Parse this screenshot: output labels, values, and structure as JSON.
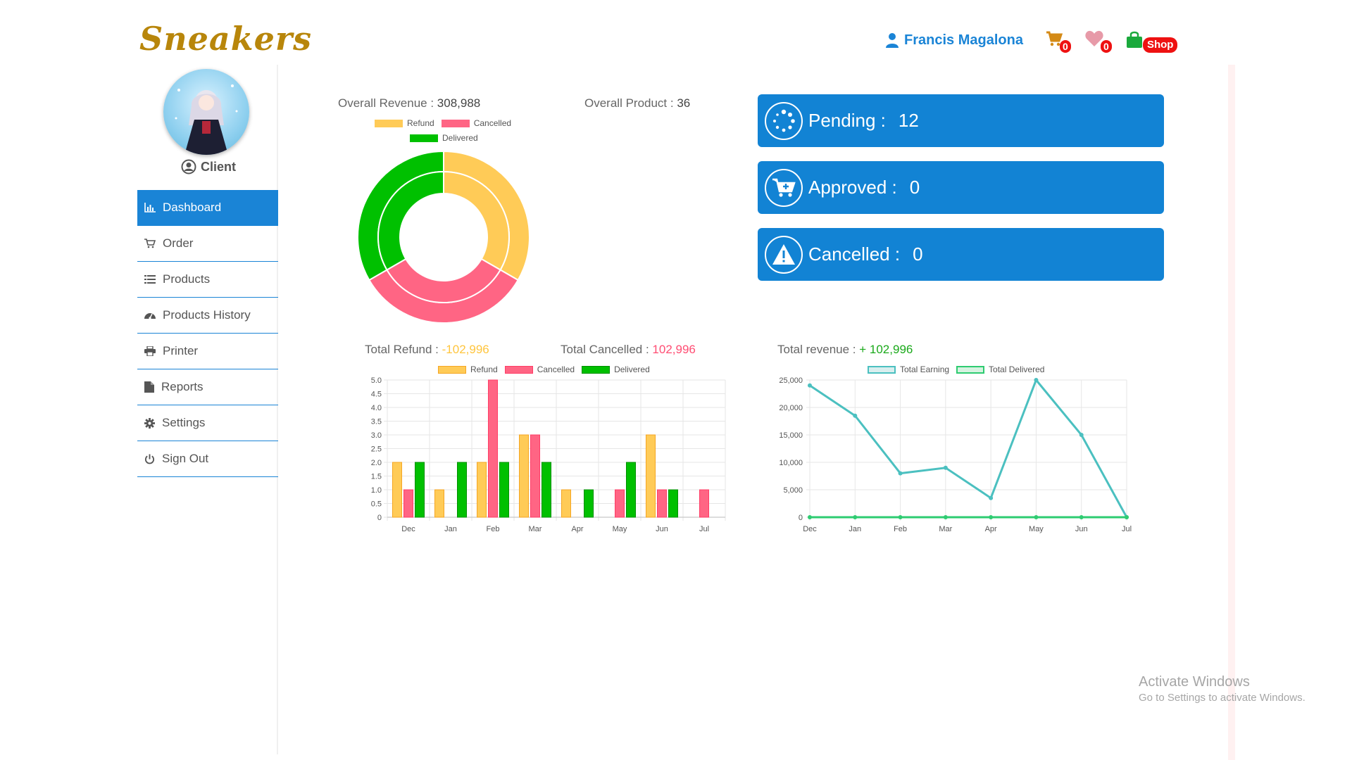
{
  "header": {
    "logo": "Sneakers",
    "user_name": "Francis Magalona",
    "cart_count": "0",
    "wishlist_count": "0",
    "shop_label": "Shop"
  },
  "sidebar": {
    "role": "Client",
    "items": [
      {
        "label": "Dashboard",
        "icon": "bar-chart-icon"
      },
      {
        "label": "Order",
        "icon": "cart-icon"
      },
      {
        "label": "Products",
        "icon": "list-icon"
      },
      {
        "label": "Products History",
        "icon": "dashboard-gauge-icon"
      },
      {
        "label": "Printer",
        "icon": "printer-icon"
      },
      {
        "label": "Reports",
        "icon": "file-icon"
      },
      {
        "label": "Settings",
        "icon": "gear-icon"
      },
      {
        "label": "Sign Out",
        "icon": "power-icon"
      }
    ]
  },
  "stats": {
    "overall_revenue_label": "Overall Revenue : ",
    "overall_revenue_value": "308,988",
    "overall_product_label": "Overall Product : ",
    "overall_product_value": "36",
    "total_refund_label": "Total Refund : ",
    "total_refund_value": "-102,996",
    "total_cancelled_label": "Total Cancelled : ",
    "total_cancelled_value": "102,996",
    "total_revenue_label": "Total revenue : ",
    "total_revenue_value": "+ 102,996"
  },
  "cards": [
    {
      "label": "Pending :",
      "value": "12",
      "icon": "spinner-icon"
    },
    {
      "label": "Approved :",
      "value": "0",
      "icon": "cart-plus-icon"
    },
    {
      "label": "Cancelled :",
      "value": "0",
      "icon": "warning-icon"
    }
  ],
  "colors": {
    "refund": "#ffcb57",
    "cancelled": "#ff6584",
    "delivered": "#00c000",
    "primary": "#1283d4",
    "earning": "#4bc0c0",
    "delivered_line": "#2ecc71"
  },
  "chart_data": [
    {
      "type": "doughnut",
      "legend": [
        "Refund",
        "Cancelled",
        "Delivered"
      ],
      "rings": [
        {
          "values": [
            33.3,
            33.3,
            33.3
          ]
        },
        {
          "values": [
            33.3,
            33.3,
            33.3
          ]
        }
      ]
    },
    {
      "type": "bar",
      "categories": [
        "Dec",
        "Jan",
        "Feb",
        "Mar",
        "Apr",
        "May",
        "Jun",
        "Jul"
      ],
      "series": [
        {
          "name": "Refund",
          "values": [
            2,
            1,
            2,
            3,
            1,
            0,
            3,
            0
          ]
        },
        {
          "name": "Cancelled",
          "values": [
            1,
            0,
            5,
            3,
            0,
            1,
            1,
            1
          ]
        },
        {
          "name": "Delivered",
          "values": [
            2,
            2,
            2,
            2,
            1,
            2,
            1,
            0
          ]
        }
      ],
      "ylim": [
        0,
        5
      ],
      "yticks": [
        "0",
        "0.5",
        "1.0",
        "1.5",
        "2.0",
        "2.5",
        "3.0",
        "3.5",
        "4.0",
        "4.5",
        "5.0"
      ],
      "grid": true,
      "legend": "top"
    },
    {
      "type": "line",
      "categories": [
        "Dec",
        "Jan",
        "Feb",
        "Mar",
        "Apr",
        "May",
        "Jun",
        "Jul"
      ],
      "series": [
        {
          "name": "Total Earning",
          "values": [
            24000,
            18500,
            8000,
            9000,
            3500,
            25000,
            15000,
            0
          ]
        },
        {
          "name": "Total Delivered",
          "values": [
            0,
            0,
            0,
            0,
            0,
            0,
            0,
            0
          ]
        }
      ],
      "ylim": [
        0,
        25000
      ],
      "yticks": [
        "0",
        "5,000",
        "10,000",
        "15,000",
        "20,000",
        "25,000"
      ],
      "grid": true,
      "legend": "top"
    }
  ],
  "watermark": {
    "title": "Activate Windows",
    "subtitle": "Go to Settings to activate Windows."
  }
}
